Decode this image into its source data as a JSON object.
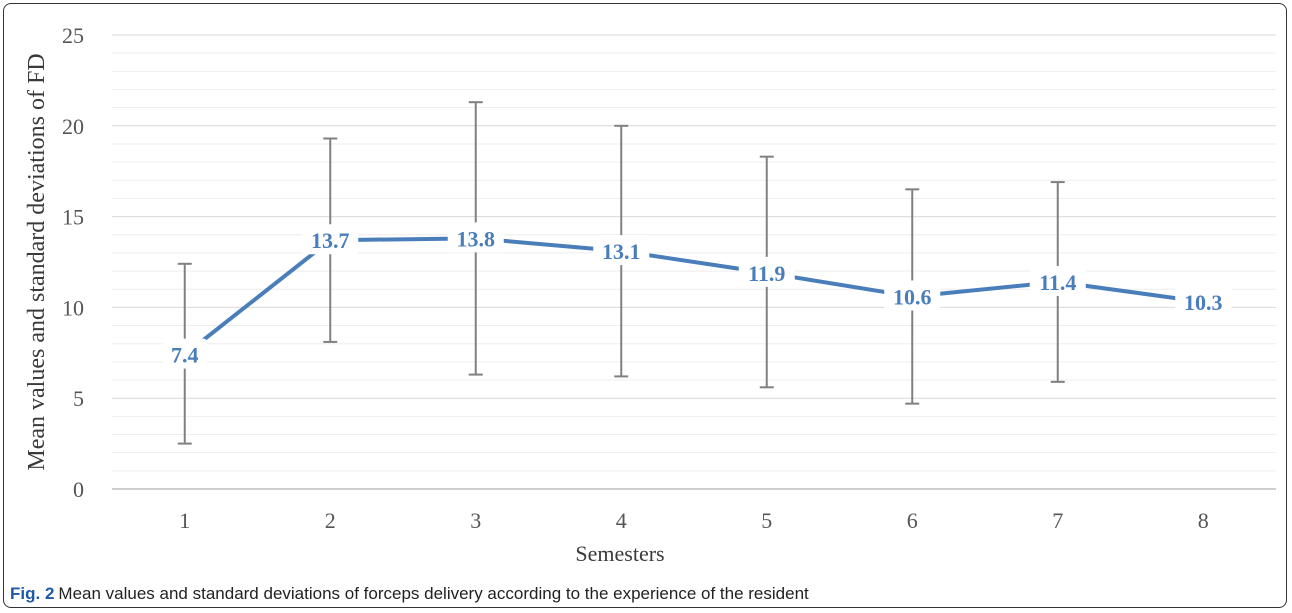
{
  "chart_data": {
    "type": "line",
    "title": "",
    "xlabel": "Semesters",
    "ylabel": "Mean values and standard deviations of FD",
    "categories": [
      "1",
      "2",
      "3",
      "4",
      "5",
      "6",
      "7",
      "8"
    ],
    "series": [
      {
        "values": [
          7.4,
          13.7,
          13.8,
          13.1,
          11.9,
          10.6,
          11.4,
          10.3
        ],
        "labels": [
          "7.4",
          "13.7",
          "13.8",
          "13.1",
          "11.9",
          "10.6",
          "11.4",
          "10.3"
        ],
        "error_low": [
          2.5,
          8.1,
          6.3,
          6.2,
          5.6,
          4.7,
          5.9,
          null
        ],
        "error_high": [
          12.4,
          19.3,
          21.3,
          20.0,
          18.3,
          16.5,
          16.9,
          null
        ],
        "color": "#4a7ebb"
      }
    ],
    "yticks": [
      "0",
      "5",
      "10",
      "15",
      "20",
      "25"
    ],
    "ylim": [
      0,
      25
    ],
    "grid": true,
    "legend": "none",
    "error_bar_color": "#808080"
  },
  "caption": {
    "label": "Fig. 2",
    "text": "Mean values and standard deviations of forceps delivery according to the experience of the resident"
  }
}
